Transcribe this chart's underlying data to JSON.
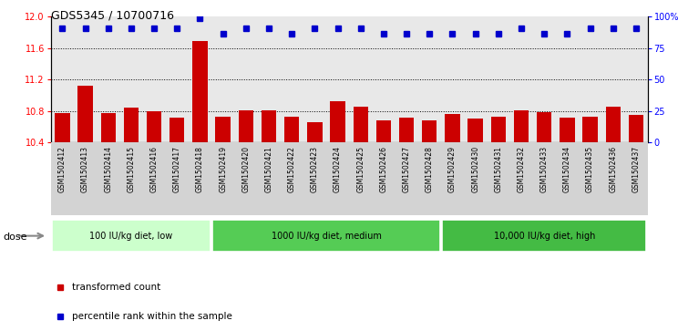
{
  "title": "GDS5345 / 10700716",
  "samples": [
    "GSM1502412",
    "GSM1502413",
    "GSM1502414",
    "GSM1502415",
    "GSM1502416",
    "GSM1502417",
    "GSM1502418",
    "GSM1502419",
    "GSM1502420",
    "GSM1502421",
    "GSM1502422",
    "GSM1502423",
    "GSM1502424",
    "GSM1502425",
    "GSM1502426",
    "GSM1502427",
    "GSM1502428",
    "GSM1502429",
    "GSM1502430",
    "GSM1502431",
    "GSM1502432",
    "GSM1502433",
    "GSM1502434",
    "GSM1502435",
    "GSM1502436",
    "GSM1502437"
  ],
  "bar_values": [
    10.77,
    11.12,
    10.77,
    10.84,
    10.79,
    10.72,
    11.69,
    10.73,
    10.81,
    10.81,
    10.73,
    10.66,
    10.92,
    10.85,
    10.68,
    10.72,
    10.68,
    10.76,
    10.7,
    10.73,
    10.81,
    10.78,
    10.71,
    10.73,
    10.85,
    10.75
  ],
  "percentile_values": [
    91,
    91,
    91,
    91,
    91,
    91,
    99,
    86,
    91,
    91,
    86,
    91,
    91,
    91,
    86,
    86,
    86,
    86,
    86,
    86,
    91,
    86,
    86,
    91,
    91,
    91
  ],
  "bar_color": "#cc0000",
  "dot_color": "#0000cc",
  "ymin": 10.4,
  "ymax": 12.0,
  "yticks": [
    10.4,
    10.8,
    11.2,
    11.6,
    12.0
  ],
  "grid_lines": [
    10.8,
    11.2,
    11.6
  ],
  "y2ticks": [
    0,
    25,
    50,
    75,
    100
  ],
  "groups": [
    {
      "label": "100 IU/kg diet, low",
      "start": 0,
      "end": 7,
      "color": "#ccffcc"
    },
    {
      "label": "1000 IU/kg diet, medium",
      "start": 7,
      "end": 17,
      "color": "#55cc55"
    },
    {
      "label": "10,000 IU/kg diet, high",
      "start": 17,
      "end": 26,
      "color": "#44bb44"
    }
  ],
  "dose_label": "dose",
  "bg_color": "#d3d3d3",
  "plot_bg": "#e8e8e8"
}
